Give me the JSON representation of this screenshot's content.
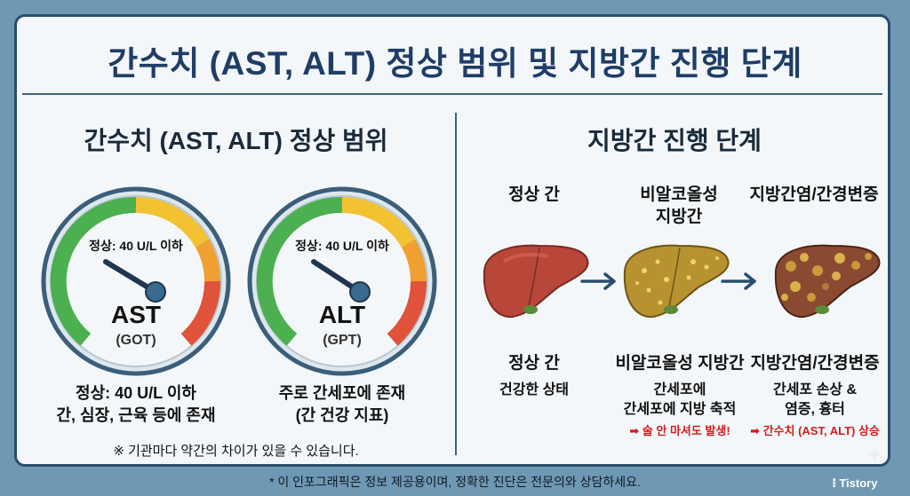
{
  "title": "간수치 (AST, ALT) 정상 범위 및 지방간 진행 단계",
  "left": {
    "heading": "간수치 (AST, ALT) 정상 범위",
    "gauges": [
      {
        "normal_label": "정상: 40 U/L 이하",
        "name": "AST",
        "sub": "(GOT)",
        "desc_line1": "정상: 40 U/L 이하",
        "desc_line2": "간, 심장, 근육 등에 존재"
      },
      {
        "normal_label": "정상: 40 U/L 이하",
        "name": "ALT",
        "sub": "(GPT)",
        "desc_line1": "주로 간세포에 존재",
        "desc_line2": "(간 건강 지표)"
      }
    ],
    "note": "※ 기관마다 약간의 차이가 있을 수 있습니다."
  },
  "right": {
    "heading": "지방간 진행 단계",
    "stages": [
      {
        "top_label": "정상 간",
        "top_label2": "",
        "bottom_label": "정상 간",
        "desc1": "건강한 상태",
        "desc2": "",
        "warning": ""
      },
      {
        "top_label": "비알코올성",
        "top_label2": "지방간",
        "bottom_label": "비알코올성 지방간",
        "desc1": "간세포에",
        "desc2": "간세포에 지방 축적",
        "warning": "➡ 술 안 마셔도 발생!"
      },
      {
        "top_label": "지방간염/간경변증",
        "top_label2": "",
        "bottom_label": "지방간염/간경변증",
        "desc1": "간세포 손상 &",
        "desc2": "염증, 흉터",
        "warning": "➡ 간수치 (AST, ALT) 상승"
      }
    ]
  },
  "footer": "* 이 인포그래픽은 정보 제공용이며, 정확한 진단은 전문의와 상담하세요.",
  "brand": "Tistory",
  "colors": {
    "title": "#1f3d66",
    "frame": "#2b4d6d",
    "warning": "#d01d1d",
    "gauge_green": "#4caf50",
    "gauge_yellow": "#f2c232",
    "gauge_red": "#e0523a"
  }
}
